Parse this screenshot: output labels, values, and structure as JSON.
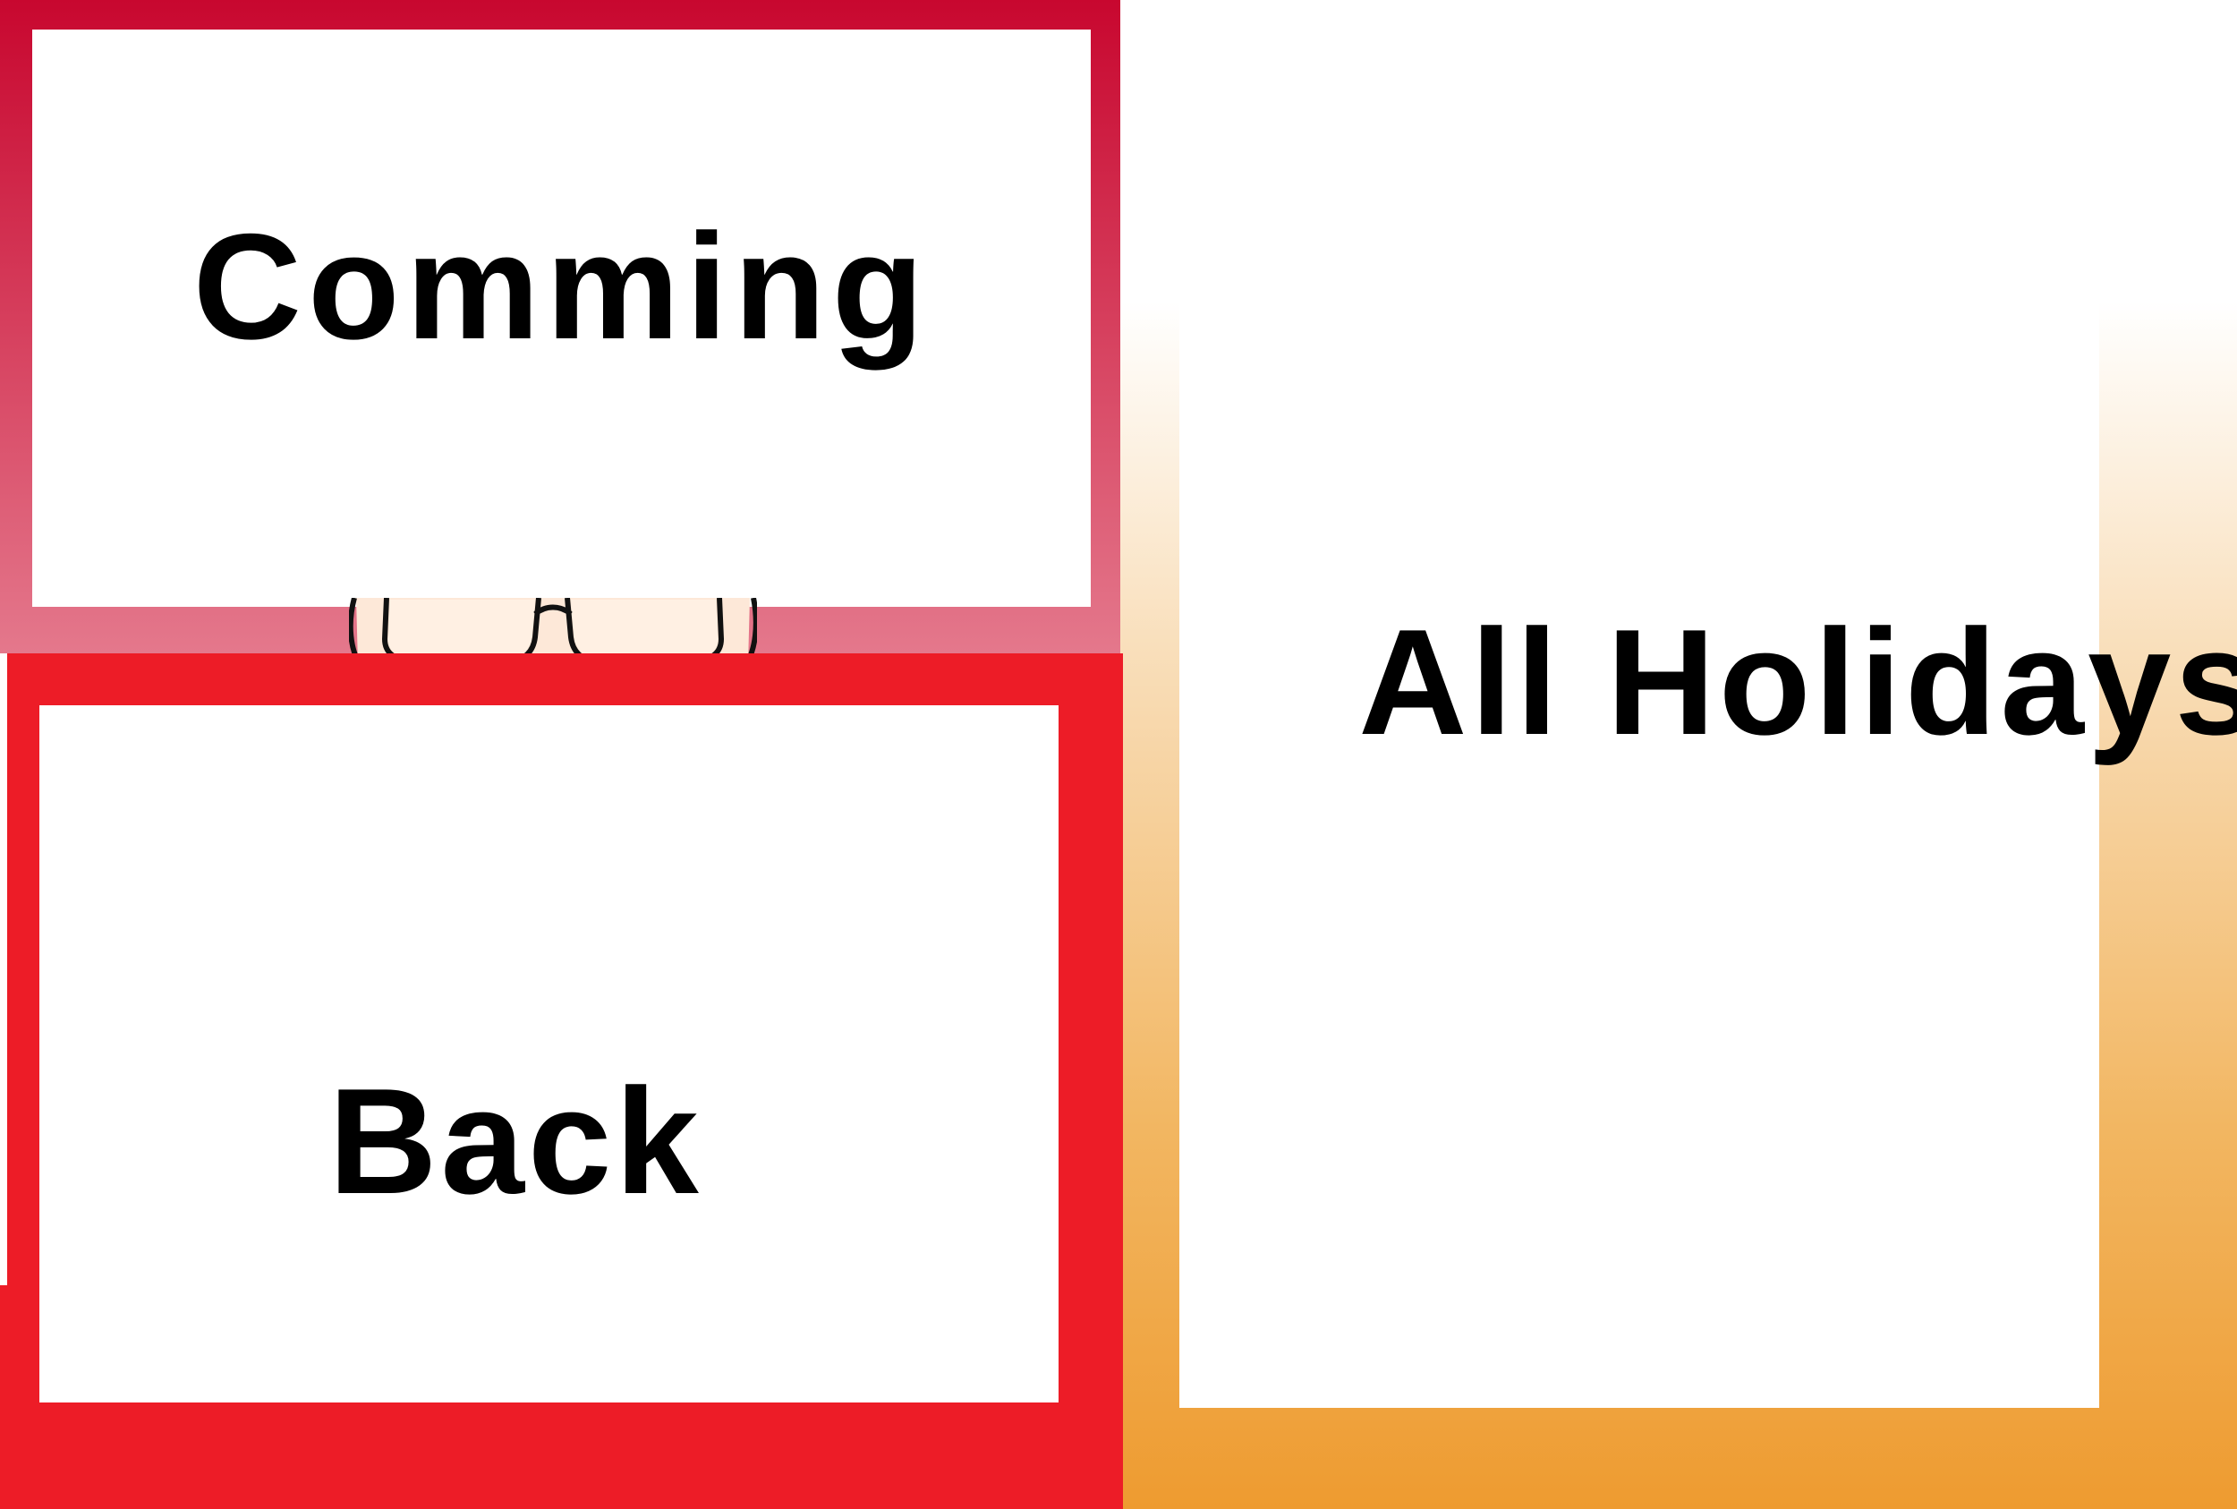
{
  "tiles": {
    "comming": {
      "label": "Comming"
    },
    "back": {
      "label": "Back"
    },
    "all_holidays": {
      "label": "All Holidays"
    }
  },
  "colors": {
    "comming_gradient_top": "#c8072f",
    "comming_gradient_bottom": "#e4788c",
    "back_background": "#ed1c27",
    "holidays_gradient_top": "#ffffff",
    "holidays_gradient_bottom": "#ee9b30",
    "panel_background": "#ffffff",
    "label_text": "#000000"
  },
  "icons": {
    "face": "cartoon-face-with-glasses-icon"
  }
}
